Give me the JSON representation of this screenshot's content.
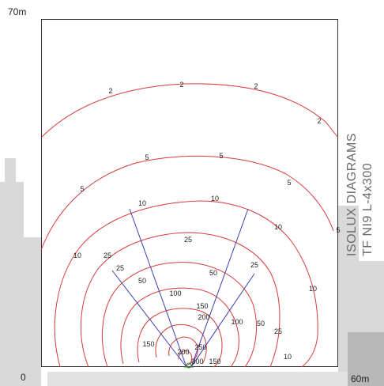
{
  "diagram": {
    "axis": {
      "y_max_label": "70m",
      "origin_label": "0",
      "x_max_label": "60m"
    },
    "title_lines": [
      "ISOLUX DIAGRAMS",
      "TF NI9 L-4x300"
    ],
    "colors": {
      "contour": "#d83a3a",
      "beam": "#3b3fb0",
      "frame": "#333333",
      "title": "#6a6a6a"
    },
    "contour_labels": [
      {
        "text": "2"
      },
      {
        "text": "2"
      },
      {
        "text": "2"
      },
      {
        "text": "2"
      },
      {
        "text": "5"
      },
      {
        "text": "5"
      },
      {
        "text": "5"
      },
      {
        "text": "5"
      },
      {
        "text": "5"
      },
      {
        "text": "10"
      },
      {
        "text": "10"
      },
      {
        "text": "10"
      },
      {
        "text": "10"
      },
      {
        "text": "10"
      },
      {
        "text": "10"
      },
      {
        "text": "25"
      },
      {
        "text": "25"
      },
      {
        "text": "25"
      },
      {
        "text": "25"
      },
      {
        "text": "25"
      },
      {
        "text": "50"
      },
      {
        "text": "50"
      },
      {
        "text": "50"
      },
      {
        "text": "100"
      },
      {
        "text": "100"
      },
      {
        "text": "150"
      },
      {
        "text": "150"
      },
      {
        "text": "150"
      },
      {
        "text": "200"
      },
      {
        "text": "200"
      },
      {
        "text": "250"
      },
      {
        "text": "300"
      }
    ]
  }
}
